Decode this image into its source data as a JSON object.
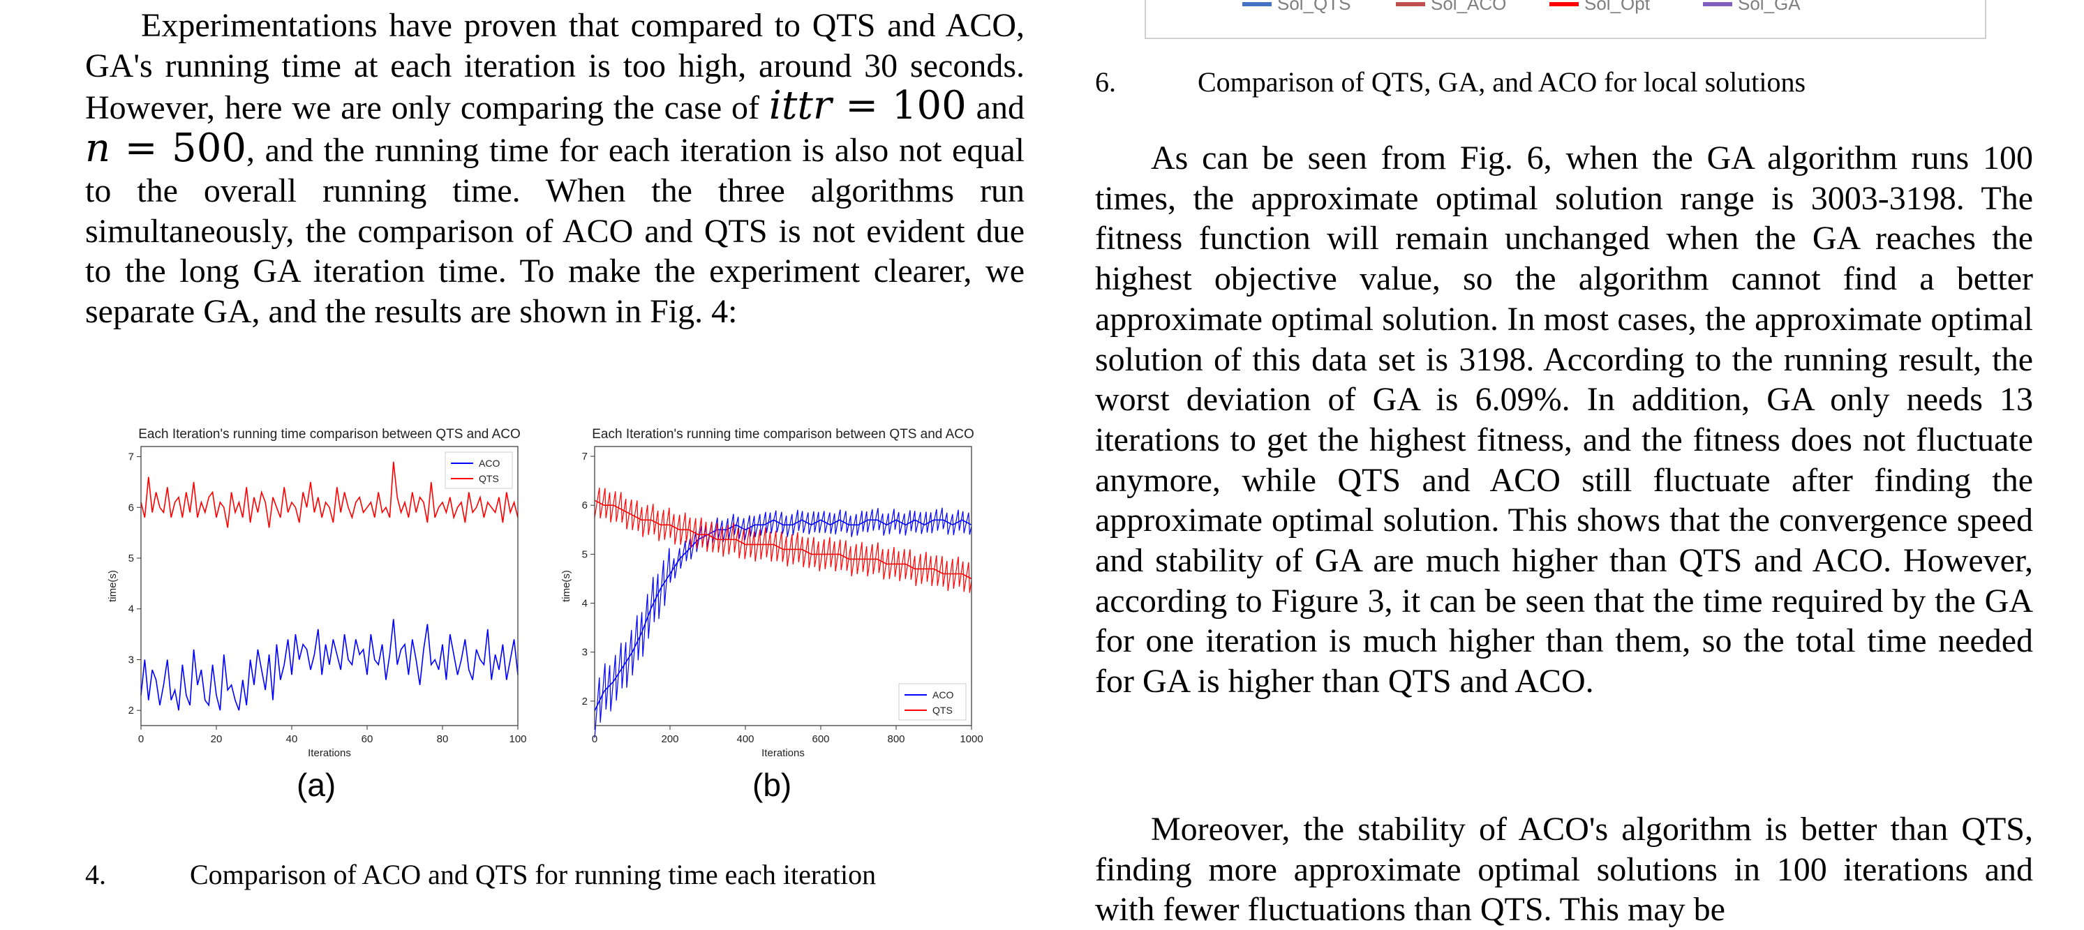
{
  "left_paragraph": {
    "part1": "Experimentations have proven that compared to QTS and ACO, GA's running time at each iteration is too high, around 30 seconds. However, here we are only comparing the case of ",
    "math_ittr": "ittr",
    "math_eq1": " = 100",
    "part2": " and ",
    "math_n": "n",
    "math_eq2": " = 500",
    "part3": ", and the running time for each iteration is also not equal to the overall running time. When the three algorithms run simultaneously, the comparison of ACO and QTS is not evident due to the long GA iteration time. To make the experiment clearer, we separate GA, and the results are shown in Fig. 4:"
  },
  "figure4": {
    "caption_number": "4.",
    "caption_text": "Comparison of ACO and QTS for running time each iteration",
    "label_a": "(a)",
    "label_b": "(b)"
  },
  "figure6": {
    "caption_number": "6.",
    "caption_text": "Comparison of QTS, GA, and ACO for local solutions",
    "legend": [
      "Sol_QTS",
      "Sol_ACO",
      "Sol_Opt",
      "Sol_GA"
    ]
  },
  "right_paragraph_1": "As can be seen from Fig. 6, when the GA algorithm runs 100 times, the approximate optimal solution range is 3003-3198. The fitness function will remain unchanged when the GA reaches the highest objective value, so the algorithm cannot find a better approximate optimal solution. In most cases, the approximate optimal solution of this data set is 3198. According to the running result, the worst deviation of GA is 6.09%. In addition, GA only needs 13 iterations to get the highest fitness, and the fitness does not fluctuate anymore, while QTS and ACO still fluctuate after finding the approximate optimal solution. This shows that the convergence speed and stability of GA are much higher than QTS and ACO. However, according to Figure 3, it can be seen that the time required by the GA for one iteration is much higher than them, so the total time needed for GA is higher than QTS and ACO.",
  "right_paragraph_2": "Moreover, the stability of ACO's algorithm is better than QTS, finding more approximate optimal solutions in 100 iterations and with fewer fluctuations than QTS. This may be",
  "colors": {
    "aco": "#0000ff",
    "qts": "#ff0000",
    "sol_qts": "#4472c4",
    "sol_aco": "#c0504d",
    "sol_opt": "#ff0000",
    "sol_ga": "#7f5fbf"
  },
  "chart_data": [
    {
      "type": "line",
      "title": "Each Iteration's running time comparison between QTS and ACO",
      "xlabel": "Iterations",
      "ylabel": "time(s)",
      "xlim": [
        0,
        100
      ],
      "ylim": [
        1.7,
        7.2
      ],
      "xticks": [
        "0",
        "20",
        "40",
        "60",
        "80",
        "100"
      ],
      "yticks": [
        "2",
        "3",
        "4",
        "5",
        "6",
        "7"
      ],
      "legend_position": "top-right",
      "series": [
        {
          "name": "ACO",
          "color": "#0000ff",
          "values": [
            2.3,
            3.0,
            2.2,
            2.8,
            2.6,
            2.1,
            2.5,
            3.0,
            2.2,
            2.4,
            2.0,
            2.9,
            2.3,
            2.1,
            3.2,
            2.5,
            2.8,
            2.2,
            2.1,
            2.9,
            2.3,
            2.0,
            3.1,
            2.4,
            2.5,
            2.2,
            2.0,
            2.6,
            2.1,
            3.0,
            2.5,
            3.2,
            2.8,
            2.4,
            3.1,
            2.2,
            3.3,
            2.6,
            2.9,
            3.4,
            2.7,
            3.5,
            3.0,
            3.3,
            3.2,
            2.8,
            3.1,
            3.6,
            2.7,
            3.3,
            2.9,
            3.4,
            3.1,
            2.8,
            3.5,
            3.0,
            2.9,
            3.4,
            3.1,
            3.2,
            2.7,
            3.5,
            3.0,
            2.9,
            3.3,
            2.6,
            3.1,
            3.8,
            2.9,
            3.2,
            3.3,
            2.7,
            3.4,
            3.0,
            2.5,
            3.2,
            3.7,
            2.9,
            3.0,
            2.8,
            3.3,
            2.6,
            3.5,
            3.1,
            2.7,
            3.0,
            3.4,
            2.8,
            2.6,
            3.2,
            3.0,
            2.9,
            3.6,
            2.6,
            3.1,
            2.8,
            3.3,
            2.6,
            3.0,
            3.4,
            2.7
          ]
        },
        {
          "name": "QTS",
          "color": "#ff0000",
          "values": [
            6.1,
            5.8,
            6.6,
            5.9,
            6.3,
            6.0,
            5.9,
            6.4,
            5.8,
            6.1,
            6.2,
            5.8,
            6.3,
            5.9,
            6.5,
            5.8,
            6.1,
            5.9,
            6.2,
            6.3,
            5.8,
            6.1,
            6.0,
            5.6,
            6.3,
            5.9,
            6.1,
            5.8,
            6.4,
            5.7,
            6.2,
            5.9,
            6.3,
            6.1,
            5.6,
            6.2,
            6.0,
            5.8,
            6.4,
            5.9,
            6.1,
            6.0,
            5.7,
            6.3,
            6.0,
            6.5,
            5.9,
            6.2,
            5.8,
            6.1,
            6.0,
            5.7,
            6.4,
            5.9,
            6.3,
            6.0,
            5.8,
            6.1,
            6.2,
            5.9,
            6.0,
            6.1,
            5.8,
            6.3,
            5.9,
            6.0,
            5.8,
            6.9,
            6.2,
            5.9,
            6.1,
            5.8,
            6.3,
            5.9,
            6.2,
            6.1,
            5.7,
            6.5,
            5.8,
            6.0,
            6.1,
            5.9,
            6.2,
            5.8,
            6.0,
            6.1,
            5.7,
            6.3,
            5.9,
            6.0,
            6.2,
            5.8,
            6.1,
            6.0,
            5.9,
            6.2,
            5.7,
            6.3,
            5.9,
            6.1,
            5.8
          ]
        }
      ]
    },
    {
      "type": "line",
      "title": "Each Iteration's running time comparison between QTS and ACO",
      "xlabel": "Iterations",
      "ylabel": "time(s)",
      "xlim": [
        0,
        1000
      ],
      "ylim": [
        1.5,
        7.2
      ],
      "xticks": [
        "0",
        "200",
        "400",
        "600",
        "800",
        "1000"
      ],
      "yticks": [
        "2",
        "3",
        "4",
        "5",
        "6",
        "7"
      ],
      "legend_position": "lower-right",
      "series": [
        {
          "name": "ACO",
          "color": "#0000ff",
          "values": [
            1.8,
            2.2,
            2.4,
            2.7,
            3.0,
            3.4,
            3.9,
            4.3,
            4.6,
            4.9,
            5.1,
            5.3,
            5.4,
            5.5,
            5.5,
            5.6,
            5.5,
            5.6,
            5.6,
            5.7,
            5.6,
            5.6,
            5.7,
            5.6,
            5.7,
            5.6,
            5.7,
            5.6,
            5.6,
            5.7,
            5.7,
            5.6,
            5.7,
            5.6,
            5.7,
            5.6,
            5.7,
            5.7,
            5.6,
            5.7,
            5.6
          ]
        },
        {
          "name": "QTS",
          "color": "#ff0000",
          "values": [
            6.1,
            6.0,
            6.0,
            5.9,
            5.8,
            5.7,
            5.7,
            5.6,
            5.6,
            5.5,
            5.5,
            5.4,
            5.4,
            5.3,
            5.3,
            5.3,
            5.2,
            5.2,
            5.2,
            5.2,
            5.1,
            5.1,
            5.1,
            5.0,
            5.0,
            5.0,
            5.0,
            4.9,
            4.9,
            4.9,
            4.9,
            4.8,
            4.8,
            4.8,
            4.7,
            4.7,
            4.7,
            4.6,
            4.6,
            4.6,
            4.5
          ]
        }
      ]
    }
  ]
}
